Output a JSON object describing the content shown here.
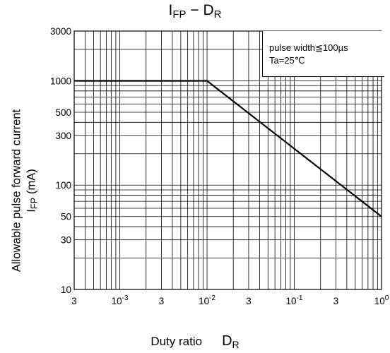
{
  "chart_data": {
    "type": "line",
    "title": {
      "symbol": "I",
      "symbol_sub": "FP",
      "dash": "−",
      "var": "D",
      "var_sub": "R"
    },
    "ylabel": {
      "line1": "Allowable pulse forward current",
      "line2_sym": "I",
      "line2_sub": "FP",
      "line2_unit": "(mA)"
    },
    "xlabel": {
      "text": "Duty ratio",
      "sym": "D",
      "sub": "R"
    },
    "x_scale": "log",
    "y_scale": "log",
    "xlim": [
      0.0003,
      1
    ],
    "ylim": [
      10,
      3000
    ],
    "grid": true,
    "x_ticks": [
      {
        "value": 0.0003,
        "label": "3",
        "sup": ""
      },
      {
        "value": 0.001,
        "label": "10",
        "sup": "-3"
      },
      {
        "value": 0.003,
        "label": "3",
        "sup": ""
      },
      {
        "value": 0.01,
        "label": "10",
        "sup": "-2"
      },
      {
        "value": 0.03,
        "label": "3",
        "sup": ""
      },
      {
        "value": 0.1,
        "label": "10",
        "sup": "-1"
      },
      {
        "value": 0.3,
        "label": "3",
        "sup": ""
      },
      {
        "value": 1,
        "label": "10",
        "sup": "0"
      }
    ],
    "y_ticks": [
      {
        "value": 10,
        "label": "10"
      },
      {
        "value": 30,
        "label": "30"
      },
      {
        "value": 50,
        "label": "50"
      },
      {
        "value": 100,
        "label": "100"
      },
      {
        "value": 300,
        "label": "300"
      },
      {
        "value": 500,
        "label": "500"
      },
      {
        "value": 1000,
        "label": "1000"
      },
      {
        "value": 3000,
        "label": "3000"
      }
    ],
    "series": [
      {
        "x": [
          0.0003,
          0.01,
          1
        ],
        "y": [
          1000,
          1000,
          50
        ]
      }
    ],
    "legend": {
      "line1": "pulse width≦100µs",
      "line2": "Ta=25℃",
      "placement": "top-right"
    }
  }
}
